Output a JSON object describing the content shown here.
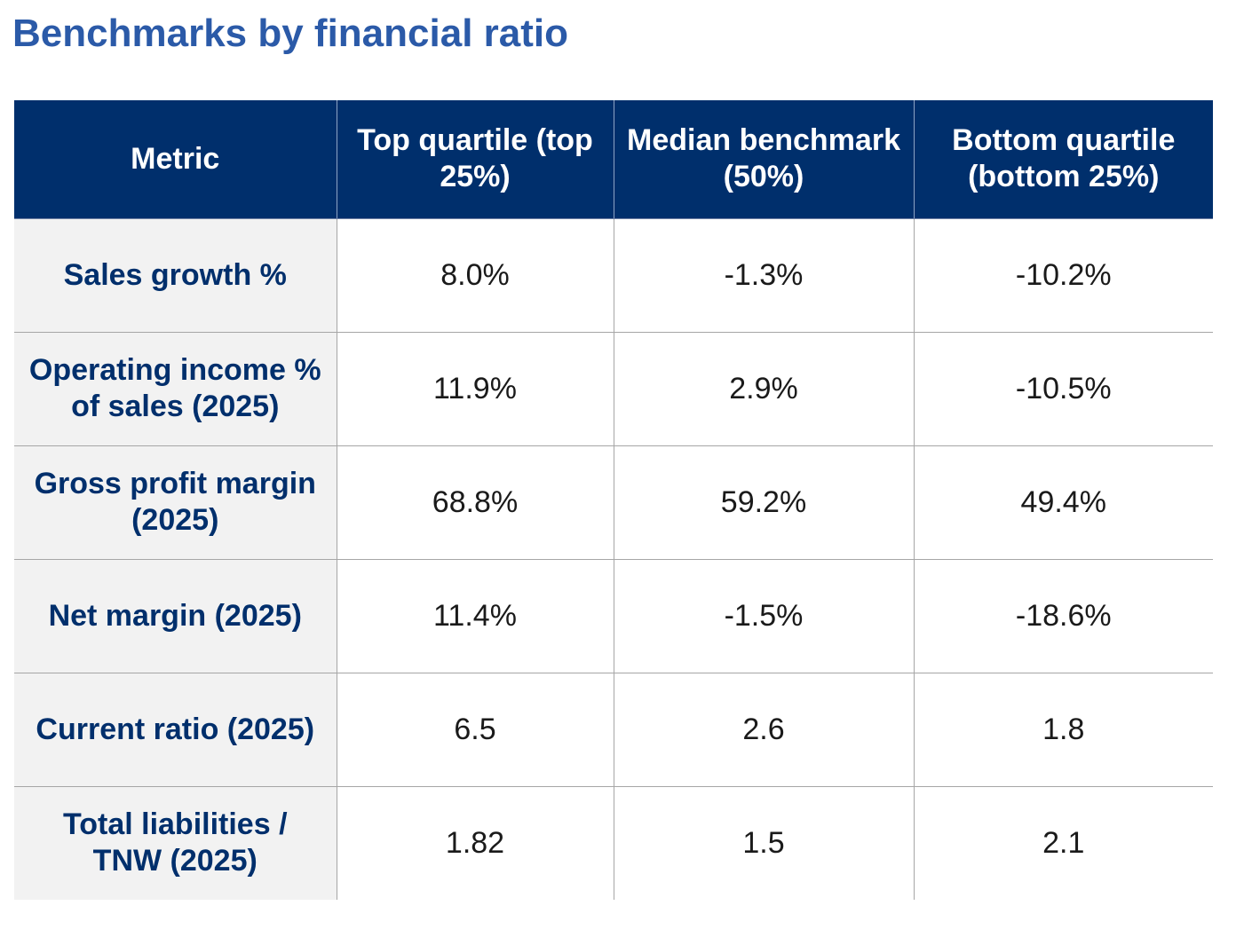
{
  "title": "Benchmarks by financial ratio",
  "table": {
    "headers": [
      "Metric",
      "Top quartile (top 25%)",
      "Median benchmark (50%)",
      "Bottom quartile (bottom 25%)"
    ],
    "rows": [
      {
        "metric": "Sales growth %",
        "top": "8.0%",
        "median": "-1.3%",
        "bottom": "-10.2%"
      },
      {
        "metric": "Operating income % of sales (2025)",
        "top": "11.9%",
        "median": "2.9%",
        "bottom": "-10.5%"
      },
      {
        "metric": "Gross profit margin (2025)",
        "top": "68.8%",
        "median": "59.2%",
        "bottom": "49.4%"
      },
      {
        "metric": "Net margin (2025)",
        "top": "11.4%",
        "median": "-1.5%",
        "bottom": "-18.6%"
      },
      {
        "metric": "Current ratio (2025)",
        "top": "6.5",
        "median": "2.6",
        "bottom": "1.8"
      },
      {
        "metric": "Total liabilities / TNW (2025)",
        "top": "1.82",
        "median": "1.5",
        "bottom": "2.1"
      }
    ]
  },
  "colors": {
    "title": "#2b5aa8",
    "header_background": "#002f6c",
    "header_text": "#ffffff",
    "metric_background": "#f2f2f2",
    "metric_text": "#002f6c",
    "grid": "#a6a6a6"
  }
}
